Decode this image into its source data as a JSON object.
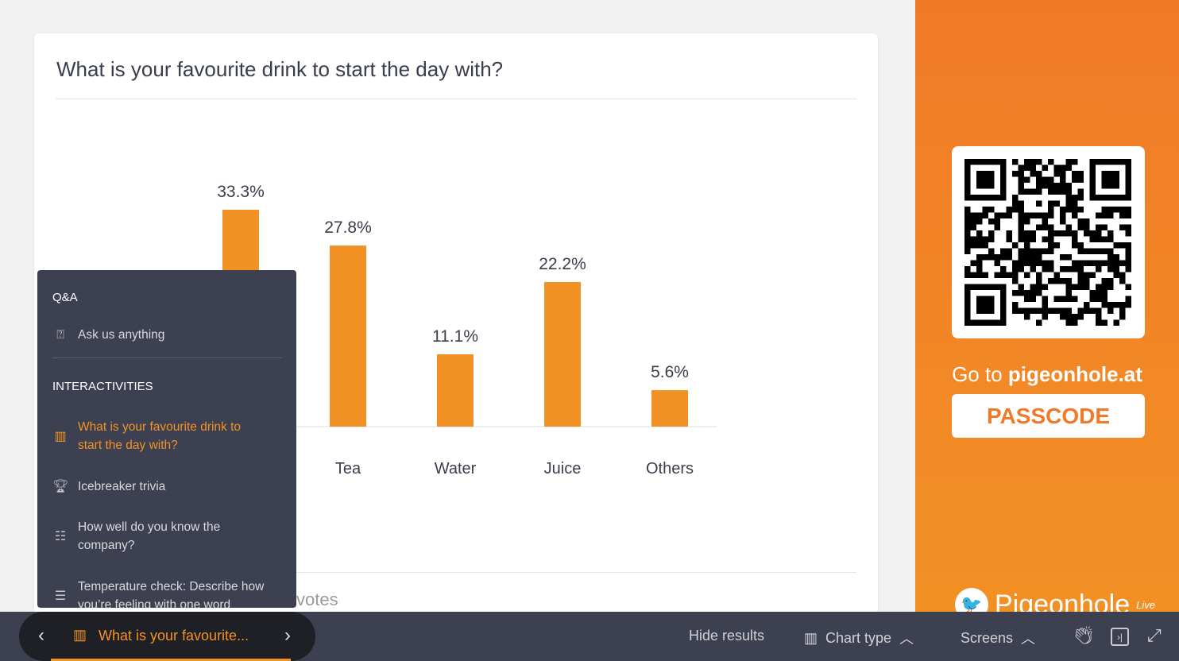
{
  "question": "What is your favourite drink to start the day with?",
  "votes_label": "votes",
  "chart_data": {
    "type": "bar",
    "categories": [
      "",
      "Tea",
      "Water",
      "Juice",
      "Others"
    ],
    "values": [
      33.3,
      27.8,
      11.1,
      22.2,
      5.6
    ],
    "value_labels": [
      "33.3%",
      "27.8%",
      "11.1%",
      "22.2%",
      "5.6%"
    ],
    "color": "#f39224",
    "ylim": [
      0,
      33.3
    ]
  },
  "side": {
    "goto_prefix": "Go to ",
    "site": "pigeonhole.at",
    "passcode": "PASSCODE",
    "logo_text": "Pigeonhole",
    "logo_sup": "Live",
    "accent": "#f07a28"
  },
  "panel": {
    "qa_heading": "Q&A",
    "qa_item": "Ask us anything",
    "inter_heading": "INTERACTIVITIES",
    "items": [
      {
        "label": "What is your favourite drink to start the day with?",
        "icon": "bar-chart-icon"
      },
      {
        "label": "Icebreaker trivia",
        "icon": "trophy-icon"
      },
      {
        "label": "How well do you know the company?",
        "icon": "quiz-icon"
      },
      {
        "label": "Temperature check: Describe how you’re feeling with one word",
        "icon": "word-cloud-icon"
      }
    ]
  },
  "bottom": {
    "current": "What is your favourite...",
    "hide_results": "Hide results",
    "chart_type": "Chart type",
    "screens": "Screens"
  }
}
